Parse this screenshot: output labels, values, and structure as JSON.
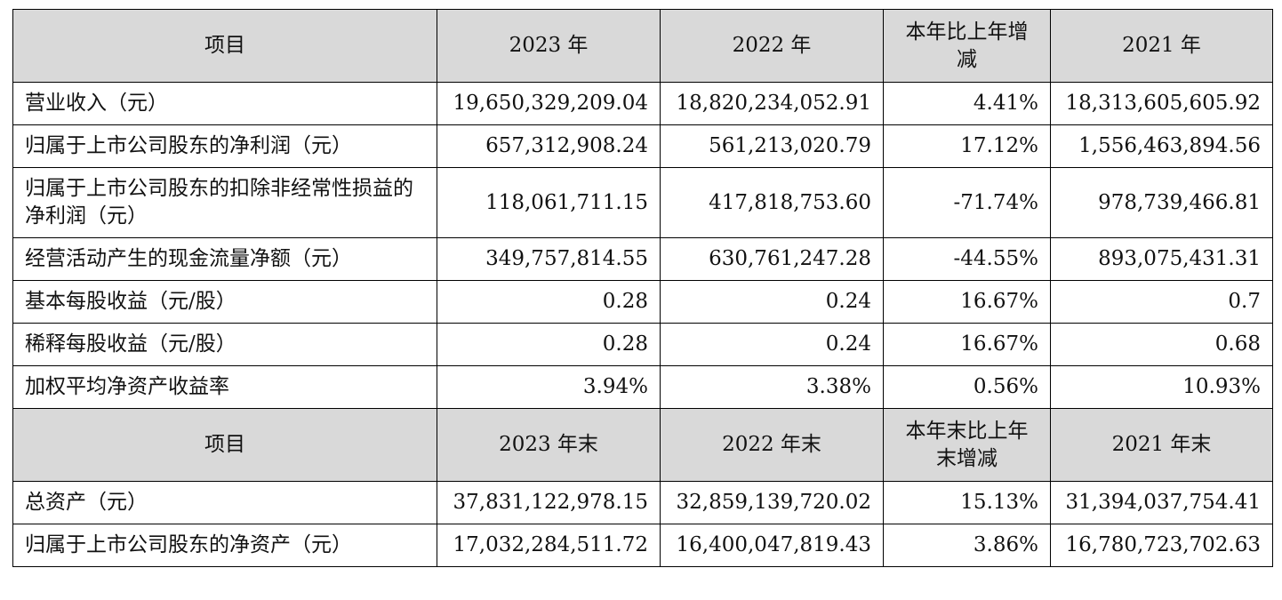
{
  "table1": {
    "headers": [
      "项目",
      "2023 年",
      "2022 年",
      "本年比上年增减",
      "2021 年"
    ],
    "rows": [
      [
        "营业收入（元）",
        "19,650,329,209.04",
        "18,820,234,052.91",
        "4.41%",
        "18,313,605,605.92"
      ],
      [
        "归属于上市公司股东的净利润（元）",
        "657,312,908.24",
        "561,213,020.79",
        "17.12%",
        "1,556,463,894.56"
      ],
      [
        "归属于上市公司股东的扣除非经常性损益的净利润（元）",
        "118,061,711.15",
        "417,818,753.60",
        "-71.74%",
        "978,739,466.81"
      ],
      [
        "经营活动产生的现金流量净额（元）",
        "349,757,814.55",
        "630,761,247.28",
        "-44.55%",
        "893,075,431.31"
      ],
      [
        "基本每股收益（元/股）",
        "0.28",
        "0.24",
        "16.67%",
        "0.7"
      ],
      [
        "稀释每股收益（元/股）",
        "0.28",
        "0.24",
        "16.67%",
        "0.68"
      ],
      [
        "加权平均净资产收益率",
        "3.94%",
        "3.38%",
        "0.56%",
        "10.93%"
      ]
    ]
  },
  "table2": {
    "headers": [
      "项目",
      "2023 年末",
      "2022 年末",
      "本年末比上年末增减",
      "2021 年末"
    ],
    "rows": [
      [
        "总资产（元）",
        "37,831,122,978.15",
        "32,859,139,720.02",
        "15.13%",
        "31,394,037,754.41"
      ],
      [
        "归属于上市公司股东的净资产（元）",
        "17,032,284,511.72",
        "16,400,047,819.43",
        "3.86%",
        "16,780,723,702.63"
      ]
    ]
  }
}
